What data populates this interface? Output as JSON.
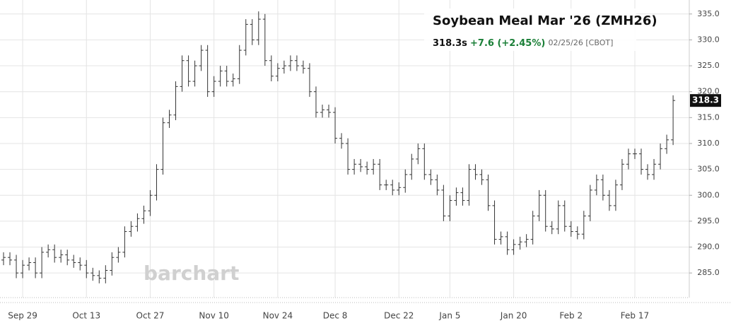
{
  "chart_data": {
    "type": "ohlc",
    "title": "Soybean Meal Mar '26 (ZMH26)",
    "last": "318.3s",
    "change": "+7.6 (+2.45%)",
    "date": "02/25/26 [CBOT]",
    "watermark": "barchart",
    "change_color": "#1a7f37",
    "categories": [
      null,
      null,
      null,
      "Sep 29",
      null,
      null,
      null,
      null,
      null,
      null,
      null,
      null,
      null,
      "Oct 13",
      null,
      null,
      null,
      null,
      null,
      null,
      null,
      null,
      null,
      "Oct 27",
      null,
      null,
      null,
      null,
      null,
      null,
      null,
      null,
      null,
      "Nov 10",
      null,
      null,
      null,
      null,
      null,
      null,
      null,
      null,
      null,
      "Nov 24",
      null,
      null,
      null,
      null,
      null,
      null,
      null,
      null,
      "Dec 8",
      null,
      null,
      null,
      null,
      null,
      null,
      null,
      null,
      null,
      "Dec 22",
      null,
      null,
      null,
      null,
      null,
      null,
      null,
      "Jan 5",
      null,
      null,
      null,
      null,
      null,
      null,
      null,
      null,
      null,
      "Jan 20",
      null,
      null,
      null,
      null,
      null,
      null,
      null,
      null,
      "Feb 2",
      null,
      null,
      null,
      null,
      null,
      null,
      null,
      null,
      null,
      "Feb 17",
      null,
      null,
      null,
      null,
      null,
      null
    ],
    "series": [
      {
        "color": "#333333",
        "open": [
          287.5,
          288,
          287.5,
          285,
          286.5,
          287,
          285,
          289,
          289.5,
          288,
          288.5,
          287.5,
          287,
          286.5,
          285,
          284.5,
          284,
          285.5,
          288,
          289,
          293,
          294,
          295.5,
          297,
          300,
          305,
          314,
          315.5,
          321,
          326,
          322,
          325,
          328,
          320,
          322,
          324,
          322,
          322.5,
          328,
          333,
          330,
          334,
          326,
          323,
          324.5,
          325,
          326,
          325,
          324.5,
          320,
          316,
          316.5,
          316,
          311,
          310,
          305,
          306,
          305.5,
          305,
          306,
          302,
          302,
          301,
          301.5,
          304,
          307,
          309,
          304,
          303,
          301,
          296,
          299,
          300.5,
          299,
          305,
          304,
          303,
          298,
          291.5,
          292,
          289.5,
          290.5,
          291,
          291.5,
          296,
          300,
          294,
          293.5,
          298,
          294,
          293,
          292.5,
          296,
          301,
          303,
          300,
          298,
          302,
          306,
          308,
          308,
          305,
          304,
          306,
          309,
          310.7
        ],
        "high": [
          289,
          289,
          288.5,
          287.5,
          288,
          288,
          290,
          290.5,
          290.5,
          289.5,
          289.5,
          288.5,
          288,
          287.5,
          286,
          285.5,
          286.5,
          289,
          290,
          294,
          295,
          296.5,
          298,
          301,
          306,
          315,
          316.5,
          322,
          327,
          327,
          326,
          329,
          329,
          323,
          325,
          325,
          323.5,
          329,
          334,
          334,
          335.5,
          335,
          327,
          325.5,
          326,
          327,
          327,
          326,
          325.5,
          321,
          317.5,
          317.5,
          317,
          312,
          311,
          307,
          307,
          306.5,
          307,
          307,
          303,
          303,
          302.5,
          305,
          308,
          310,
          310,
          305,
          304,
          302,
          300,
          301.5,
          301.5,
          306,
          306,
          305,
          304,
          299,
          293,
          293,
          291.5,
          292,
          292.5,
          297,
          301,
          301,
          295,
          299,
          299,
          295,
          294,
          297,
          302,
          304,
          304,
          301,
          303,
          307,
          309,
          309,
          309,
          306,
          307,
          310,
          311.7,
          319.3
        ],
        "low": [
          286.5,
          286.5,
          284,
          284,
          285.5,
          284,
          284,
          288,
          287,
          287,
          286.5,
          286,
          285.5,
          284,
          283.5,
          283,
          283,
          284.5,
          287,
          288,
          292,
          293,
          294.5,
          296,
          299,
          304,
          313,
          314.5,
          320,
          321,
          321,
          324,
          319,
          319,
          321,
          321,
          321,
          321.5,
          327,
          329,
          329,
          325,
          322,
          322,
          323.5,
          324,
          324,
          323.5,
          319,
          315,
          315,
          315,
          310,
          309,
          304,
          304,
          304.5,
          304,
          304,
          301,
          301,
          300,
          300,
          300.5,
          303,
          306,
          303,
          302,
          300,
          295,
          295,
          298,
          298,
          298,
          303,
          302,
          297,
          290.5,
          290.5,
          288.5,
          288.5,
          289.5,
          290,
          290.5,
          295,
          293,
          292.5,
          292.5,
          293,
          292,
          291.5,
          291.5,
          295,
          300,
          299,
          297,
          297,
          301,
          305,
          307,
          304,
          303,
          303,
          305,
          308,
          309.7
        ],
        "close": [
          288,
          287.5,
          285,
          286.5,
          287,
          285,
          289,
          289.5,
          288,
          288.5,
          287.5,
          287,
          286.5,
          285,
          284.5,
          284,
          285.5,
          288,
          289,
          293,
          294,
          295.5,
          297,
          300,
          305,
          314,
          315.5,
          321,
          326,
          322,
          325,
          328,
          320,
          322,
          324,
          322,
          322.5,
          328,
          333,
          330,
          334,
          326,
          323,
          324.5,
          325,
          326,
          325,
          324.5,
          320,
          316,
          316.5,
          316,
          311,
          310,
          305,
          306,
          305.5,
          305,
          306,
          302,
          302,
          301,
          301.5,
          304,
          307,
          309,
          304,
          303,
          301,
          296,
          299,
          300.5,
          299,
          305,
          304,
          303,
          298,
          291.5,
          292,
          289.5,
          290.5,
          291,
          291.5,
          296,
          300,
          294,
          293.5,
          298,
          294,
          293,
          292.5,
          296,
          301,
          303,
          300,
          298,
          302,
          306,
          308,
          308,
          305,
          304,
          306,
          309,
          310.7,
          318.3
        ]
      }
    ],
    "ylim": [
      279.7,
      337.7
    ],
    "yticks": [
      {
        "value": 285,
        "label": "285.0"
      },
      {
        "value": 290,
        "label": "290.0"
      },
      {
        "value": 295,
        "label": "295.0"
      },
      {
        "value": 300,
        "label": "300.0"
      },
      {
        "value": 305,
        "label": "305.0"
      },
      {
        "value": 310,
        "label": "310.0"
      },
      {
        "value": 315,
        "label": "315.0"
      },
      {
        "value": 320,
        "label": "320.0"
      },
      {
        "value": 325,
        "label": "325.0"
      },
      {
        "value": 330,
        "label": "330.0"
      },
      {
        "value": 335,
        "label": "335.0"
      }
    ],
    "grid": true
  }
}
